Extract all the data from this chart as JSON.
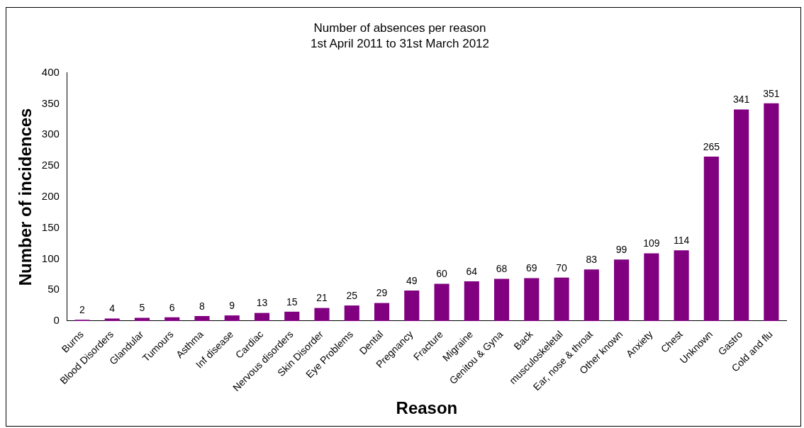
{
  "chart_data": {
    "type": "bar",
    "title": "Number of absences per reason",
    "subtitle": "1st April 2011 to 31st March 2012",
    "xlabel": "Reason",
    "ylabel": "Number of incidences",
    "categories": [
      "Burns",
      "Blood Disorders",
      "Glandular",
      "Tumours",
      "Asthma",
      "Inf disease",
      "Cardiac",
      "Nervous disorders",
      "Skin Disorder",
      "Eye Problems",
      "Dental",
      "Pregnancy",
      "Fracture",
      "Migraine",
      "Genitou & Gyna",
      "Back",
      "musculoskeletal",
      "Ear, nose & throat",
      "Other known",
      "Anxiety",
      "Chest",
      "Unknown",
      "Gastro",
      "Cold and flu"
    ],
    "values": [
      2,
      4,
      5,
      6,
      8,
      9,
      13,
      15,
      21,
      25,
      29,
      49,
      60,
      64,
      68,
      69,
      70,
      83,
      99,
      109,
      114,
      265,
      341,
      351
    ],
    "color": "#800080",
    "ylim": [
      0,
      400
    ],
    "yticks": [
      0,
      50,
      100,
      150,
      200,
      250,
      300,
      350,
      400
    ],
    "grid": false,
    "legend": false,
    "data_labels": true
  }
}
